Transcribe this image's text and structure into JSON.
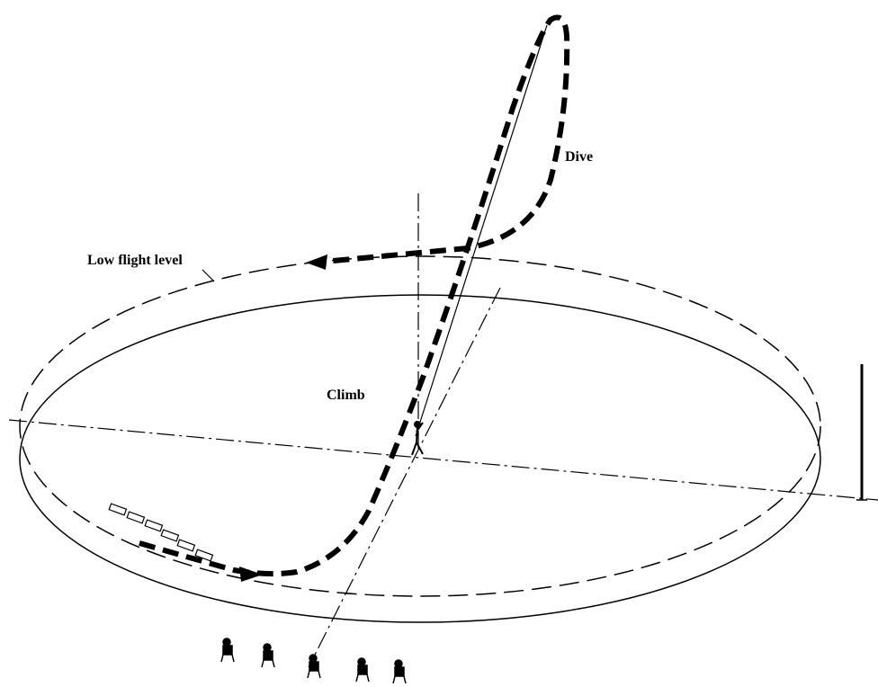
{
  "labels": {
    "dive": "Dive",
    "low_flight_level": "Low flight level",
    "climb": "Climb"
  }
}
